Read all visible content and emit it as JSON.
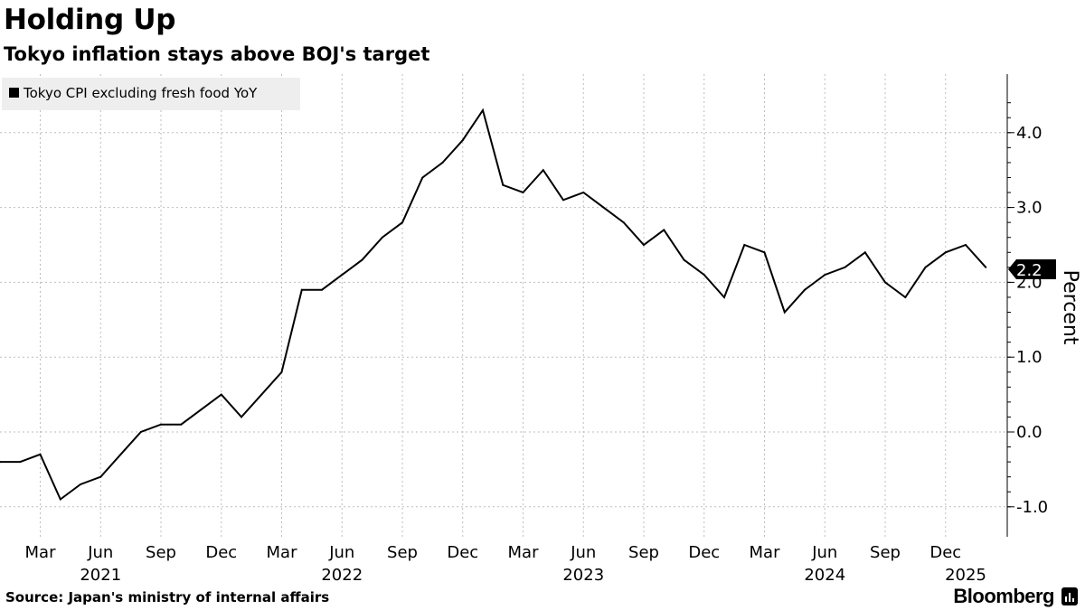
{
  "header": {
    "title": "Holding Up",
    "subtitle": "Tokyo inflation stays above BOJ's target"
  },
  "footer": {
    "source": "Source: Japan's ministry of internal affairs",
    "brand": "Bloomberg"
  },
  "chart_data": {
    "type": "line",
    "title": "Holding Up",
    "subtitle": "Tokyo inflation stays above BOJ's target",
    "xlabel": "",
    "ylabel": "Percent",
    "ylim": [
      -1.4,
      4.8
    ],
    "yticks": [
      -1.0,
      0.0,
      1.0,
      2.0,
      3.0,
      4.0
    ],
    "ytick_labels": [
      "-1.0",
      "0.0",
      "1.0",
      "2.0",
      "3.0",
      "4.0"
    ],
    "grid": true,
    "legend_position": "top-left",
    "x": [
      "2021-01",
      "2021-02",
      "2021-03",
      "2021-04",
      "2021-05",
      "2021-06",
      "2021-07",
      "2021-08",
      "2021-09",
      "2021-10",
      "2021-11",
      "2021-12",
      "2022-01",
      "2022-02",
      "2022-03",
      "2022-04",
      "2022-05",
      "2022-06",
      "2022-07",
      "2022-08",
      "2022-09",
      "2022-10",
      "2022-11",
      "2022-12",
      "2023-01",
      "2023-02",
      "2023-03",
      "2023-04",
      "2023-05",
      "2023-06",
      "2023-07",
      "2023-08",
      "2023-09",
      "2023-10",
      "2023-11",
      "2023-12",
      "2024-01",
      "2024-02",
      "2024-03",
      "2024-04",
      "2024-05",
      "2024-06",
      "2024-07",
      "2024-08",
      "2024-09",
      "2024-10",
      "2024-11",
      "2024-12",
      "2025-01",
      "2025-02"
    ],
    "x_ticks": [
      {
        "period": "2021-03",
        "label": "Mar"
      },
      {
        "period": "2021-06",
        "label": "Jun"
      },
      {
        "period": "2021-09",
        "label": "Sep"
      },
      {
        "period": "2021-12",
        "label": "Dec"
      },
      {
        "period": "2022-03",
        "label": "Mar"
      },
      {
        "period": "2022-06",
        "label": "Jun"
      },
      {
        "period": "2022-09",
        "label": "Sep"
      },
      {
        "period": "2022-12",
        "label": "Dec"
      },
      {
        "period": "2023-03",
        "label": "Mar"
      },
      {
        "period": "2023-06",
        "label": "Jun"
      },
      {
        "period": "2023-09",
        "label": "Sep"
      },
      {
        "period": "2023-12",
        "label": "Dec"
      },
      {
        "period": "2024-03",
        "label": "Mar"
      },
      {
        "period": "2024-06",
        "label": "Jun"
      },
      {
        "period": "2024-09",
        "label": "Sep"
      },
      {
        "period": "2024-12",
        "label": "Dec"
      }
    ],
    "year_labels": [
      {
        "period": "2021-06",
        "label": "2021"
      },
      {
        "period": "2022-06",
        "label": "2022"
      },
      {
        "period": "2023-06",
        "label": "2023"
      },
      {
        "period": "2024-06",
        "label": "2024"
      },
      {
        "period": "2025-01",
        "label": "2025"
      }
    ],
    "series": [
      {
        "name": "Tokyo CPI excluding fresh food YoY",
        "color": "#000000",
        "values": [
          -0.4,
          -0.4,
          -0.3,
          -0.9,
          -0.7,
          -0.6,
          -0.3,
          0.0,
          0.1,
          0.1,
          0.3,
          0.5,
          0.2,
          0.5,
          0.8,
          1.9,
          1.9,
          2.1,
          2.3,
          2.6,
          2.8,
          3.4,
          3.6,
          3.9,
          4.3,
          3.3,
          3.2,
          3.5,
          3.1,
          3.2,
          3.0,
          2.8,
          2.5,
          2.7,
          2.3,
          2.1,
          1.8,
          2.5,
          2.4,
          1.6,
          1.9,
          2.1,
          2.2,
          2.4,
          2.0,
          1.8,
          2.2,
          2.4,
          2.5,
          2.2
        ]
      }
    ],
    "last_value_label": "2.2"
  }
}
